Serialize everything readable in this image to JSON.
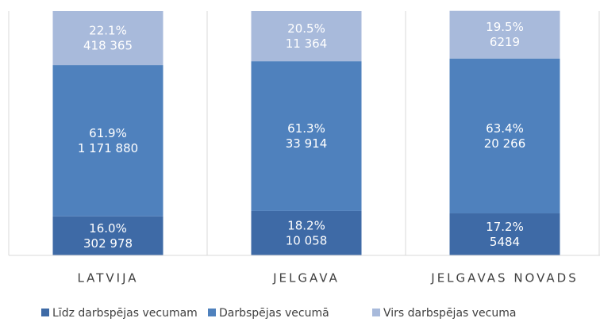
{
  "chart_data": {
    "type": "stacked_bar",
    "categories": [
      "LATVIJA",
      "JELGAVA",
      "JELGAVAS NOVADS"
    ],
    "ylim": [
      0,
      100
    ],
    "series": [
      {
        "name": "Līdz darbspējas vecumam",
        "color": "#3e6aa6",
        "values": [
          16.0,
          18.2,
          17.2
        ],
        "value_labels": [
          "16.0%",
          "18.2%",
          "17.2%"
        ],
        "counts": [
          302978,
          10058,
          5484
        ],
        "count_labels": [
          "302 978",
          "10 058",
          "5484"
        ]
      },
      {
        "name": "Darbspējas vecumā",
        "color": "#4f81bd",
        "values": [
          61.9,
          61.3,
          63.4
        ],
        "value_labels": [
          "61.9%",
          "61.3%",
          "63.4%"
        ],
        "counts": [
          1171880,
          33914,
          20266
        ],
        "count_labels": [
          "1 171 880",
          "33 914",
          "20 266"
        ]
      },
      {
        "name": "Virs darbspējas vecuma",
        "color": "#a8badb",
        "values": [
          22.1,
          20.5,
          19.5
        ],
        "value_labels": [
          "22.1%",
          "20.5%",
          "19.5%"
        ],
        "counts": [
          418365,
          11364,
          6219
        ],
        "count_labels": [
          "418 365",
          "11 364",
          "6219"
        ]
      }
    ]
  }
}
